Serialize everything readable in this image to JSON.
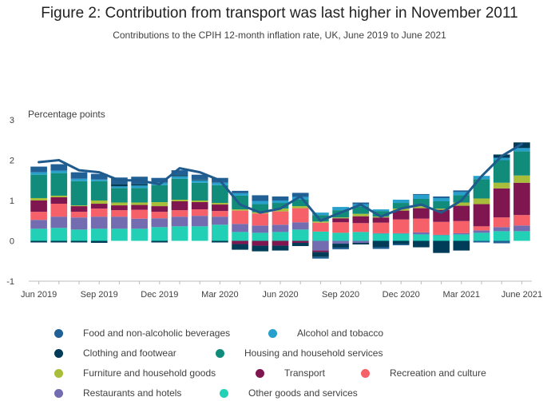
{
  "title": "Figure 2: Contribution from transport was last higher in November 2011",
  "subtitle": "Contributions to the CPIH 12-month inflation rate, UK, June 2019 to June 2021",
  "chart_data": {
    "type": "bar",
    "stacked": true,
    "ylabel": "Percentage points",
    "ylim": [
      -1,
      3
    ],
    "yticks": [
      -1,
      0,
      1,
      2,
      3
    ],
    "grid": false,
    "legend_position": "bottom",
    "categories": [
      "Jun 2019",
      "Jul 2019",
      "Aug 2019",
      "Sep 2019",
      "Oct 2019",
      "Nov 2019",
      "Dec 2019",
      "Jan 2020",
      "Feb 2020",
      "Mar 2020",
      "Apr 2020",
      "May 2020",
      "Jun 2020",
      "Jul 2020",
      "Aug 2020",
      "Sep 2020",
      "Oct 2020",
      "Nov 2020",
      "Dec 2020",
      "Jan 2021",
      "Feb 2021",
      "Mar 2021",
      "Apr 2021",
      "May 2021",
      "Jun 2021"
    ],
    "x_tick_labels": [
      "Jun 2019",
      "Sep 2019",
      "Dec 2019",
      "Mar 2020",
      "Jun 2020",
      "Sep 2020",
      "Dec 2020",
      "Mar 2021",
      "June 2021"
    ],
    "x_tick_indices": [
      0,
      3,
      6,
      9,
      12,
      15,
      18,
      21,
      24
    ],
    "series": [
      {
        "name": "Other goods and services",
        "color": "#22d0b6",
        "values": [
          0.3,
          0.32,
          0.28,
          0.3,
          0.3,
          0.3,
          0.34,
          0.36,
          0.36,
          0.4,
          0.22,
          0.2,
          0.22,
          0.28,
          0.23,
          0.2,
          0.22,
          0.18,
          0.18,
          0.16,
          0.14,
          0.16,
          0.2,
          0.24,
          0.24
        ]
      },
      {
        "name": "Restaurants and hotels",
        "color": "#746cb1",
        "values": [
          0.22,
          0.28,
          0.3,
          0.3,
          0.3,
          0.25,
          0.22,
          0.24,
          0.26,
          0.2,
          0.2,
          0.18,
          0.18,
          0.18,
          -0.24,
          -0.07,
          -0.05,
          0.01,
          0.01,
          0.05,
          0.01,
          0.03,
          0.06,
          0.1,
          0.14
        ]
      },
      {
        "name": "Recreation and culture",
        "color": "#f66068",
        "values": [
          0.2,
          0.32,
          0.14,
          0.2,
          0.16,
          0.22,
          0.16,
          0.16,
          0.16,
          0.14,
          0.33,
          0.3,
          0.33,
          0.35,
          0.22,
          0.26,
          0.22,
          0.26,
          0.34,
          0.34,
          0.32,
          0.3,
          0.1,
          0.24,
          0.26
        ]
      },
      {
        "name": "Transport",
        "color": "#801650",
        "values": [
          0.28,
          0.16,
          0.14,
          0.12,
          0.12,
          0.12,
          0.14,
          0.22,
          0.18,
          0.16,
          -0.08,
          -0.12,
          -0.12,
          -0.05,
          -0.04,
          0.1,
          0.17,
          0.13,
          0.22,
          0.26,
          0.3,
          0.38,
          0.55,
          0.72,
          0.8
        ]
      },
      {
        "name": "Furniture and household goods",
        "color": "#a8bd3a",
        "values": [
          0.06,
          0.04,
          0.02,
          0.08,
          0.07,
          0.06,
          0.1,
          0.04,
          0.04,
          0.04,
          0.03,
          0.03,
          0.07,
          0.05,
          0.03,
          0.02,
          0.06,
          0.02,
          0.05,
          0.05,
          0.03,
          0.08,
          0.14,
          0.14,
          0.18
        ]
      },
      {
        "name": "Housing and household services",
        "color": "#118c7b",
        "values": [
          0.58,
          0.56,
          0.6,
          0.48,
          0.36,
          0.36,
          0.42,
          0.52,
          0.44,
          0.44,
          0.34,
          0.2,
          0.14,
          0.16,
          0.16,
          0.18,
          0.18,
          0.14,
          0.14,
          0.18,
          0.18,
          0.18,
          0.48,
          0.56,
          0.6
        ]
      },
      {
        "name": "Alcohol and tobacco",
        "color": "#27a0cc",
        "values": [
          0.06,
          0.06,
          0.06,
          0.04,
          0.04,
          0.06,
          0.06,
          0.06,
          0.06,
          0.06,
          0.06,
          0.08,
          0.06,
          0.07,
          0.06,
          0.08,
          0.06,
          0.04,
          0.08,
          0.1,
          0.08,
          0.08,
          0.08,
          0.06,
          0.08
        ]
      },
      {
        "name": "Clothing and footwear",
        "color": "#003c57",
        "values": [
          -0.04,
          -0.04,
          -0.04,
          -0.05,
          0.06,
          0.04,
          -0.04,
          0.03,
          0.02,
          -0.04,
          -0.14,
          -0.14,
          -0.12,
          -0.08,
          -0.12,
          -0.1,
          -0.04,
          -0.16,
          -0.08,
          -0.16,
          -0.3,
          -0.24,
          0.0,
          0.08,
          0.14
        ]
      },
      {
        "name": "Food and non-alcoholic beverages",
        "color": "#206095",
        "values": [
          0.14,
          0.16,
          0.16,
          0.14,
          0.16,
          0.18,
          0.12,
          0.12,
          0.12,
          0.12,
          0.06,
          0.14,
          0.1,
          0.1,
          -0.04,
          -0.04,
          0.04,
          -0.04,
          -0.03,
          0.02,
          0.04,
          0.04,
          -0.04,
          -0.06,
          0.0
        ]
      }
    ],
    "line": {
      "name": "CPIH 12-month rate",
      "color": "#1f5b8c",
      "values": [
        1.95,
        2.0,
        1.75,
        1.7,
        1.5,
        1.5,
        1.4,
        1.8,
        1.7,
        1.5,
        0.9,
        0.7,
        0.8,
        1.1,
        0.5,
        0.7,
        0.9,
        0.6,
        0.8,
        0.9,
        0.7,
        1.0,
        1.6,
        2.1,
        2.4
      ]
    }
  },
  "legend": {
    "items": [
      {
        "label": "Food and non-alcoholic beverages",
        "color": "#206095"
      },
      {
        "label": "Alcohol and tobacco",
        "color": "#27a0cc"
      },
      {
        "label": "Clothing and footwear",
        "color": "#003c57"
      },
      {
        "label": "Housing and household services",
        "color": "#118c7b"
      },
      {
        "label": "Furniture and household goods",
        "color": "#a8bd3a"
      },
      {
        "label": "Transport",
        "color": "#801650"
      },
      {
        "label": "Recreation and culture",
        "color": "#f66068"
      },
      {
        "label": "Restaurants and hotels",
        "color": "#746cb1"
      },
      {
        "label": "Other goods and services",
        "color": "#22d0b6"
      }
    ]
  }
}
